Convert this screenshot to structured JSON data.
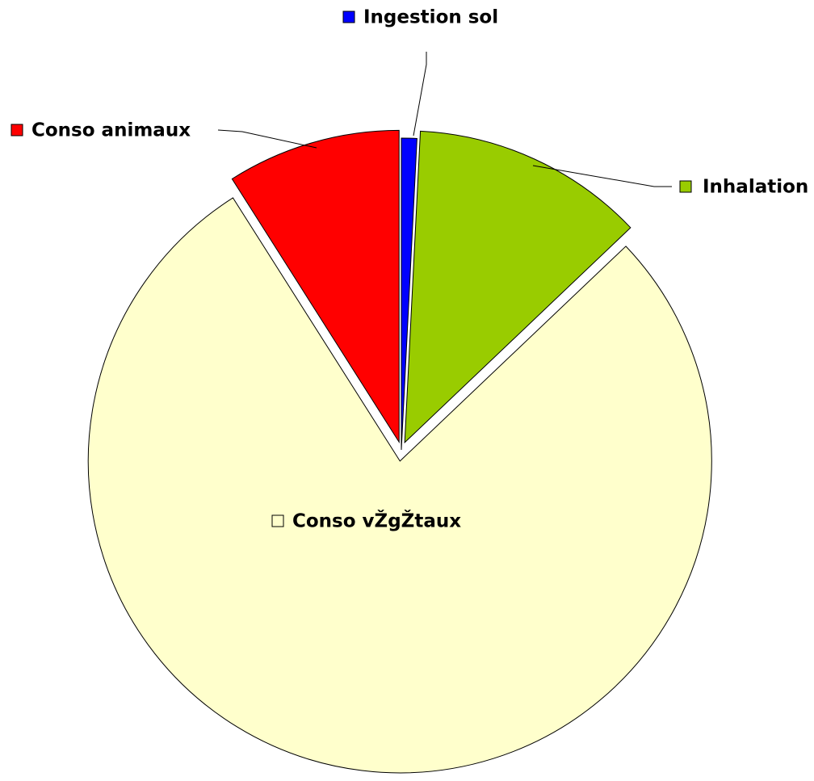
{
  "chart_data": {
    "type": "pie",
    "categories": [
      "Ingestion sol",
      "Inhalation",
      "Conso vŽgŽtaux",
      "Conso animaux"
    ],
    "values": [
      0.8,
      12.1,
      78.1,
      9.0
    ],
    "colors": [
      "#0000ff",
      "#99cc00",
      "#ffffcc",
      "#ff0000"
    ]
  }
}
